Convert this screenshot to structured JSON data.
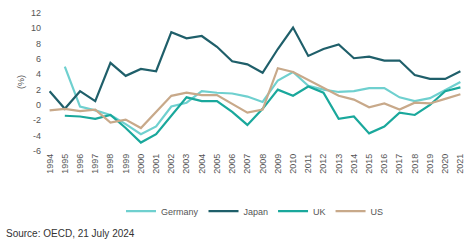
{
  "chart_data": {
    "type": "line",
    "y_label": "(%)",
    "annotations": [
      "Source: OECD, 21 July 2024"
    ],
    "categories": [
      "1994",
      "1995",
      "1996",
      "1997",
      "1998",
      "1999",
      "2000",
      "2001",
      "2002",
      "2003",
      "2004",
      "2005",
      "2006",
      "2007",
      "2008",
      "2009",
      "2010",
      "2011",
      "2012",
      "2013",
      "2014",
      "2015",
      "2016",
      "2017",
      "2018",
      "2019",
      "2020",
      "2021"
    ],
    "series": [
      {
        "name": "Germany",
        "color": "#6fd0cf",
        "values": [
          null,
          5.0,
          -0.2,
          -0.7,
          -1.3,
          -2.5,
          -3.8,
          -2.8,
          -0.2,
          0.3,
          1.8,
          1.6,
          1.5,
          1.1,
          0.4,
          3.2,
          4.3,
          2.5,
          2.0,
          1.7,
          1.8,
          2.2,
          2.2,
          1.0,
          0.5,
          0.9,
          2.0,
          3.0
        ]
      },
      {
        "name": "Japan",
        "color": "#1f5f6a",
        "values": [
          1.8,
          -0.5,
          1.8,
          0.5,
          5.5,
          3.8,
          4.7,
          4.4,
          9.5,
          8.7,
          9.0,
          7.6,
          5.7,
          5.3,
          4.2,
          7.3,
          10.1,
          6.4,
          7.3,
          7.9,
          6.1,
          6.3,
          5.8,
          5.8,
          3.9,
          3.4,
          3.4,
          4.4
        ]
      },
      {
        "name": "UK",
        "color": "#1aa89c",
        "values": [
          null,
          -1.4,
          -1.5,
          -1.8,
          -1.3,
          -3.0,
          -4.9,
          -3.8,
          -1.4,
          1.0,
          0.5,
          0.5,
          -0.9,
          -2.6,
          -0.5,
          2.0,
          1.2,
          2.4,
          1.6,
          -1.8,
          -1.5,
          -3.7,
          -2.8,
          -1.0,
          -1.3,
          0.0,
          1.8,
          2.3
        ]
      },
      {
        "name": "US",
        "color": "#c8a98a",
        "values": [
          -0.7,
          -0.5,
          -0.8,
          -0.6,
          -2.3,
          -1.9,
          -3.0,
          -0.9,
          1.2,
          1.6,
          1.3,
          1.3,
          0.2,
          -1.0,
          -0.6,
          4.8,
          4.3,
          3.3,
          2.2,
          1.2,
          0.7,
          -0.3,
          0.2,
          -0.6,
          0.3,
          0.2,
          0.8,
          1.4
        ]
      }
    ],
    "ylim": [
      -6,
      12
    ],
    "yticks": [
      -6,
      -4,
      -2,
      0,
      2,
      4,
      6,
      8,
      10,
      12
    ],
    "grid": false,
    "legend": "bottom"
  }
}
